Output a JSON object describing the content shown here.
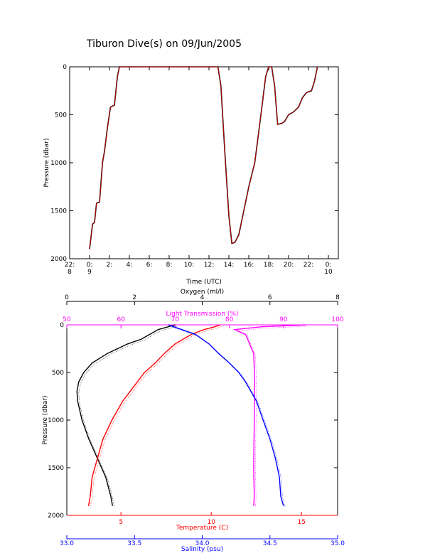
{
  "title": "Tiburon Dive(s) on 09/Jun/2005",
  "colors": {
    "axis": "#000000",
    "depth_trace": "#000000",
    "depth_overlay": "#ff0000",
    "oxygen": "#000000",
    "light_transmission": "#ff00ff",
    "temperature": "#ff0000",
    "salinity": "#0000ff"
  },
  "chart_data": [
    {
      "type": "line",
      "name": "dive-depth-timeseries",
      "xlabel": "Time (UTC)",
      "ylabel": "Pressure (dbar)",
      "x_tick_labels": [
        {
          "x": -2,
          "top": "22:",
          "bottom": "8"
        },
        {
          "x": 0,
          "top": "0:",
          "bottom": "9"
        },
        {
          "x": 2,
          "top": "2:",
          "bottom": ""
        },
        {
          "x": 4,
          "top": "4:",
          "bottom": ""
        },
        {
          "x": 6,
          "top": "6:",
          "bottom": ""
        },
        {
          "x": 8,
          "top": "8:",
          "bottom": ""
        },
        {
          "x": 10,
          "top": "10:",
          "bottom": ""
        },
        {
          "x": 12,
          "top": "12:",
          "bottom": ""
        },
        {
          "x": 14,
          "top": "14:",
          "bottom": ""
        },
        {
          "x": 16,
          "top": "16:",
          "bottom": ""
        },
        {
          "x": 18,
          "top": "18:",
          "bottom": ""
        },
        {
          "x": 20,
          "top": "20:",
          "bottom": ""
        },
        {
          "x": 22,
          "top": "22:",
          "bottom": ""
        },
        {
          "x": 24,
          "top": "0:",
          "bottom": "10"
        }
      ],
      "x_unit": "hours since 00:00 UTC 09 Jun 2005",
      "xlim": [
        -2,
        25
      ],
      "ylim": [
        2000,
        0
      ],
      "y_ticks": [
        0,
        500,
        1000,
        1500,
        2000
      ],
      "series": [
        {
          "x": [
            0.0,
            0.3,
            0.5,
            0.7,
            1.0,
            1.3,
            1.5,
            1.8,
            2.1,
            2.5,
            2.8,
            3.0,
            5.0,
            8.0,
            11.0,
            12.9,
            13.2,
            13.6,
            14.0,
            14.3,
            14.6,
            15.0,
            15.5,
            16.0,
            16.6,
            17.0,
            17.4,
            17.7,
            18.0,
            18.3,
            18.6,
            18.9,
            19.3,
            19.6,
            20.0,
            20.5,
            21.0,
            21.4,
            21.8,
            22.0,
            22.3,
            22.6,
            22.9
          ],
          "y": [
            1900,
            1640,
            1620,
            1420,
            1410,
            1000,
            880,
            630,
            420,
            400,
            100,
            0,
            0,
            0,
            0,
            0,
            200,
            900,
            1550,
            1840,
            1830,
            1750,
            1500,
            1250,
            1000,
            680,
            350,
            100,
            0,
            0,
            200,
            600,
            590,
            570,
            500,
            470,
            420,
            320,
            270,
            260,
            250,
            150,
            0
          ]
        }
      ]
    },
    {
      "type": "line",
      "name": "vertical-profiles",
      "ylabel": "Pressure (dbar)",
      "ylim": [
        2000,
        0
      ],
      "y_ticks": [
        0,
        500,
        1000,
        1500,
        2000
      ],
      "axes": {
        "oxygen": {
          "label": "Oxygen (ml/l)",
          "lim": [
            0,
            8
          ],
          "ticks": [
            0,
            2,
            4,
            6,
            8
          ]
        },
        "light_transmission": {
          "label": "Light Transmission (%)",
          "lim": [
            50,
            100
          ],
          "ticks": [
            50,
            60,
            70,
            80,
            90,
            100
          ]
        },
        "temperature": {
          "label": "Temperature (C)",
          "lim": [
            2,
            17
          ],
          "ticks": [
            5,
            10,
            15
          ]
        },
        "salinity": {
          "label": "Salinity (psu)",
          "lim": [
            33.0,
            35.0
          ],
          "ticks": [
            33.0,
            33.5,
            34.0,
            34.5,
            35.0
          ]
        }
      },
      "series": [
        {
          "axis": "oxygen",
          "pressure": [
            0,
            50,
            150,
            200,
            300,
            400,
            500,
            600,
            700,
            800,
            1000,
            1200,
            1400,
            1600,
            1800,
            1900
          ],
          "values": [
            3.2,
            2.7,
            2.2,
            1.8,
            1.2,
            0.75,
            0.5,
            0.35,
            0.3,
            0.32,
            0.45,
            0.65,
            0.9,
            1.15,
            1.3,
            1.35
          ]
        },
        {
          "axis": "light_transmission",
          "pressure": [
            0,
            20,
            50,
            100,
            300,
            600,
            1000,
            1500,
            1800,
            1900
          ],
          "values": [
            94,
            86,
            81,
            83,
            84.5,
            84.7,
            84.6,
            84.5,
            84.6,
            84.5
          ]
        },
        {
          "axis": "temperature",
          "pressure": [
            0,
            20,
            50,
            100,
            200,
            300,
            400,
            500,
            600,
            700,
            800,
            1000,
            1200,
            1400,
            1600,
            1800,
            1900
          ],
          "values": [
            10.5,
            10.2,
            9.6,
            8.9,
            8.0,
            7.4,
            6.9,
            6.3,
            5.9,
            5.5,
            5.1,
            4.5,
            4.0,
            3.7,
            3.4,
            3.3,
            3.2
          ]
        },
        {
          "axis": "salinity",
          "pressure": [
            0,
            50,
            100,
            200,
            300,
            400,
            500,
            600,
            700,
            800,
            1000,
            1200,
            1400,
            1600,
            1800,
            1900
          ],
          "values": [
            33.75,
            33.85,
            33.95,
            34.05,
            34.12,
            34.2,
            34.27,
            34.32,
            34.36,
            34.4,
            34.45,
            34.5,
            34.54,
            34.57,
            34.58,
            34.6
          ]
        }
      ]
    }
  ]
}
